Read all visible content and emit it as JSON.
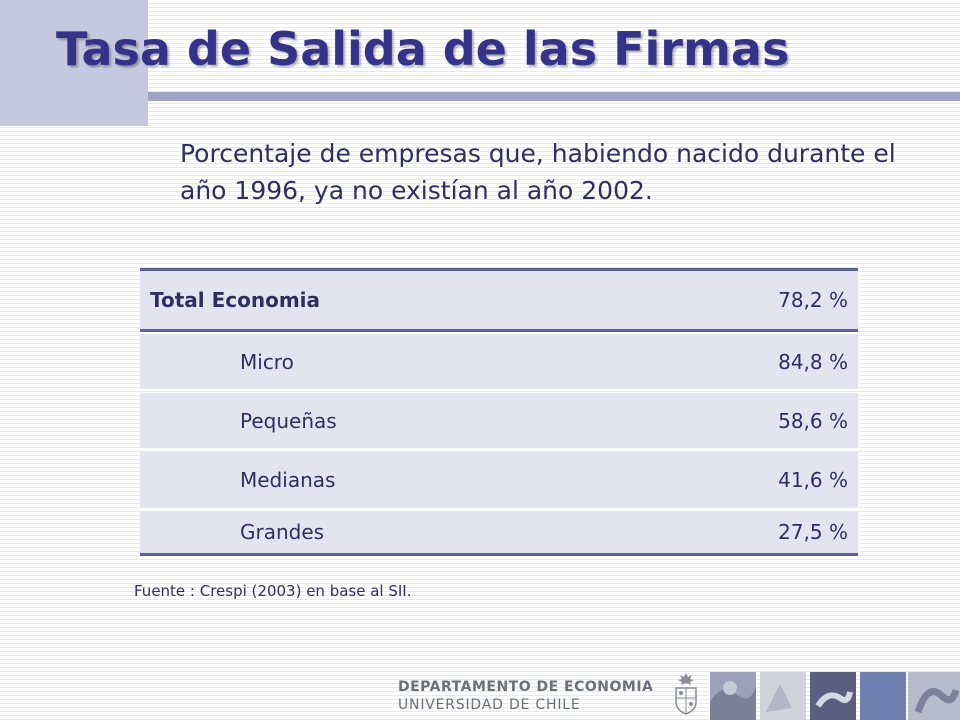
{
  "slide": {
    "title": "Tasa de Salida de las Firmas",
    "subtitle": "Porcentaje de empresas que, habiendo nacido durante el año 1996, ya no existían al año 2002."
  },
  "table": {
    "header": {
      "label": "Total Economia",
      "value": "78,2 %"
    },
    "rows": [
      {
        "label": "Micro",
        "value": "84,8 %"
      },
      {
        "label": "Pequeñas",
        "value": "58,6 %"
      },
      {
        "label": "Medianas",
        "value": "41,6 %"
      },
      {
        "label": "Grandes",
        "value": "27,5 %"
      }
    ]
  },
  "source": "Fuente : Crespi (2003) en base al SII.",
  "footer": {
    "department": "DEPARTAMENTO DE ECONOMIA",
    "university": "UNIVERSIDAD DE CHILE"
  },
  "colors": {
    "title": "#33338a",
    "accent_block": "#c6c8e0",
    "rule": "#a0a2c8",
    "table_fill": "#e3e4f0",
    "table_border": "#5d6294"
  }
}
